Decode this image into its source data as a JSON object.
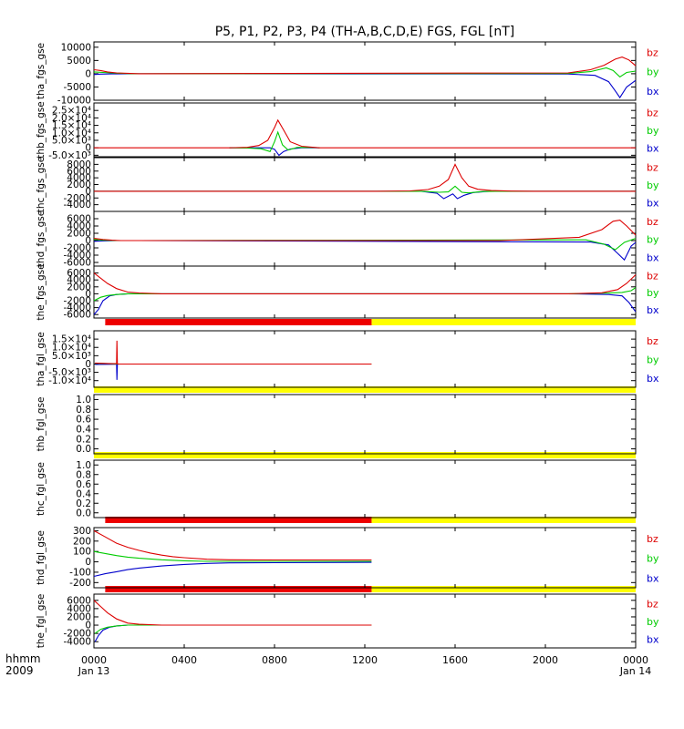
{
  "title": "P5, P1, P2, P3, P4 (TH-A,B,C,D,E) FGS, FGL [nT]",
  "footer": {
    "line1": "hhmm",
    "line2": "2009"
  },
  "colors": {
    "bz": "#dd0000",
    "by": "#00cc00",
    "bx": "#0000cc",
    "status_red": "#ee0000",
    "status_yellow": "#ffff00"
  },
  "time_axis": {
    "range_hours": [
      0,
      24
    ],
    "ticks": [
      {
        "t": 0,
        "label": "0000",
        "sub": "Jan 13"
      },
      {
        "t": 4,
        "label": "0400"
      },
      {
        "t": 8,
        "label": "0800"
      },
      {
        "t": 12,
        "label": "1200"
      },
      {
        "t": 16,
        "label": "1600"
      },
      {
        "t": 20,
        "label": "2000"
      },
      {
        "t": 24,
        "label": "0000",
        "sub": "Jan 14"
      }
    ]
  },
  "chart_data": [
    {
      "type": "line",
      "ylabel": "tha_fgs_gse",
      "ylim": [
        -10000,
        12000
      ],
      "yticks": [
        {
          "v": 10000,
          "label": "10000"
        },
        {
          "v": 5000,
          "label": "5000"
        },
        {
          "v": 0,
          "label": "0"
        },
        {
          "v": -5000,
          "label": "-5000"
        },
        {
          "v": -10000,
          "label": "-10000"
        }
      ],
      "series": [
        {
          "name": "bz",
          "x": [
            0,
            0.3,
            0.6,
            1.0,
            1.6,
            2.0,
            21.0,
            22.0,
            22.6,
            23.1,
            23.4,
            23.7,
            24.0
          ],
          "y": [
            1500,
            1200,
            700,
            300,
            100,
            0,
            300,
            1500,
            3200,
            5500,
            6300,
            5200,
            3000
          ]
        },
        {
          "name": "by",
          "x": [
            0,
            0.4,
            1.0,
            1.8,
            2.0,
            21.0,
            22.0,
            22.7,
            23.0,
            23.3,
            23.6,
            24.0
          ],
          "y": [
            700,
            500,
            200,
            0,
            0,
            100,
            800,
            2200,
            1200,
            -1200,
            500,
            1000
          ]
        },
        {
          "name": "bx",
          "x": [
            0,
            0.3,
            0.8,
            1.5,
            2.0,
            21.0,
            22.2,
            22.8,
            23.1,
            23.3,
            23.6,
            24.0
          ],
          "y": [
            -300,
            -150,
            -50,
            0,
            0,
            -100,
            -600,
            -3000,
            -6500,
            -9000,
            -5000,
            -2500
          ]
        }
      ]
    },
    {
      "type": "line",
      "ylabel": "thb_fgs_gse",
      "ylim": [
        -6000,
        30000
      ],
      "yticks": [
        {
          "v": 25000,
          "label": "2.5×10⁴"
        },
        {
          "v": 20000,
          "label": "2.0×10⁴"
        },
        {
          "v": 15000,
          "label": "1.5×10⁴"
        },
        {
          "v": 10000,
          "label": "1.0×10⁴"
        },
        {
          "v": 5000,
          "label": "5.0×10³"
        },
        {
          "v": 0,
          "label": "0"
        },
        {
          "v": -5000,
          "label": "-5.0×10³"
        }
      ],
      "series": [
        {
          "name": "bz",
          "x": [
            0,
            6.0,
            6.8,
            7.3,
            7.7,
            8.0,
            8.15,
            8.4,
            8.7,
            9.2,
            9.8,
            10.0,
            24
          ],
          "y": [
            0,
            0,
            300,
            1500,
            5000,
            13500,
            18500,
            12000,
            4000,
            1000,
            200,
            0,
            0
          ]
        },
        {
          "name": "by",
          "x": [
            6.0,
            6.8,
            7.4,
            7.8,
            8.0,
            8.15,
            8.35,
            8.6,
            9.0,
            9.6,
            10.0
          ],
          "y": [
            0,
            -200,
            -600,
            -2500,
            4000,
            10500,
            2000,
            -1500,
            200,
            300,
            0
          ]
        },
        {
          "name": "bx",
          "x": [
            6.0,
            7.2,
            7.8,
            8.0,
            8.2,
            8.4,
            8.7,
            9.2,
            10.0
          ],
          "y": [
            0,
            0,
            0,
            -1000,
            -5000,
            -2500,
            -800,
            0,
            0
          ]
        }
      ]
    },
    {
      "type": "line",
      "ylabel": "thc_fgs_gse",
      "ylim": [
        -6000,
        10000
      ],
      "yticks": [
        {
          "v": 8000,
          "label": "8000"
        },
        {
          "v": 6000,
          "label": "6000"
        },
        {
          "v": 4000,
          "label": "4000"
        },
        {
          "v": 2000,
          "label": "2000"
        },
        {
          "v": 0,
          "label": "0"
        },
        {
          "v": -2000,
          "label": "-2000"
        },
        {
          "v": -4000,
          "label": "-4000"
        }
      ],
      "series": [
        {
          "name": "bz",
          "x": [
            0,
            12.5,
            14.0,
            14.8,
            15.3,
            15.7,
            16.0,
            16.3,
            16.6,
            17.0,
            17.6,
            18.5,
            19.5,
            24
          ],
          "y": [
            0,
            0,
            100,
            500,
            1500,
            3500,
            8000,
            4000,
            1500,
            600,
            200,
            50,
            0,
            0
          ]
        },
        {
          "name": "by",
          "x": [
            0,
            14.5,
            15.3,
            15.7,
            16.0,
            16.3,
            16.6,
            17.2,
            17.8,
            24
          ],
          "y": [
            0,
            0,
            -300,
            -200,
            1500,
            -300,
            -500,
            -100,
            0,
            0
          ]
        },
        {
          "name": "bx",
          "x": [
            0,
            14.5,
            15.2,
            15.5,
            15.9,
            16.1,
            16.4,
            16.8,
            17.5,
            24
          ],
          "y": [
            0,
            0,
            -600,
            -2200,
            -800,
            -2200,
            -1200,
            -400,
            0,
            0
          ]
        }
      ]
    },
    {
      "type": "line",
      "ylabel": "thd_fgs_gse",
      "ylim": [
        -7000,
        8000
      ],
      "yticks": [
        {
          "v": 6000,
          "label": "6000"
        },
        {
          "v": 4000,
          "label": "4000"
        },
        {
          "v": 2000,
          "label": "2000"
        },
        {
          "v": 0,
          "label": "0"
        },
        {
          "v": -2000,
          "label": "-2000"
        },
        {
          "v": -4000,
          "label": "-4000"
        },
        {
          "v": -6000,
          "label": "-6000"
        }
      ],
      "series": [
        {
          "name": "bz",
          "x": [
            0,
            0.4,
            0.8,
            1.2,
            2.0,
            18.0,
            21.5,
            22.5,
            23.0,
            23.3,
            23.6,
            24.0
          ],
          "y": [
            600,
            300,
            100,
            0,
            0,
            0,
            900,
            3000,
            5300,
            5600,
            4000,
            1500
          ]
        },
        {
          "name": "by",
          "x": [
            0,
            0.4,
            1.0,
            2.0,
            21.8,
            22.6,
            23.1,
            23.5,
            24.0
          ],
          "y": [
            300,
            100,
            0,
            0,
            200,
            -1000,
            -2500,
            -500,
            600
          ]
        },
        {
          "name": "bx",
          "x": [
            0,
            0.3,
            1.0,
            2.0,
            22.0,
            22.8,
            23.2,
            23.5,
            23.8,
            24.0
          ],
          "y": [
            -200,
            -100,
            0,
            0,
            -400,
            -1200,
            -3500,
            -5300,
            -1500,
            -500
          ]
        }
      ]
    },
    {
      "type": "line",
      "ylabel": "the_fgs_gse",
      "ylim": [
        -7000,
        8000
      ],
      "yticks": [
        {
          "v": 6000,
          "label": "6000"
        },
        {
          "v": 4000,
          "label": "4000"
        },
        {
          "v": 2000,
          "label": "2000"
        },
        {
          "v": 0,
          "label": "0"
        },
        {
          "v": -2000,
          "label": "-2000"
        },
        {
          "v": -4000,
          "label": "-4000"
        },
        {
          "v": -6000,
          "label": "-6000"
        }
      ],
      "series": [
        {
          "name": "bz",
          "x": [
            0,
            0.3,
            0.6,
            1.0,
            1.5,
            2.0,
            3.0,
            21.0,
            22.5,
            23.2,
            23.6,
            24.0
          ],
          "y": [
            6000,
            4500,
            3000,
            1500,
            500,
            200,
            0,
            0,
            300,
            1200,
            3000,
            5500
          ]
        },
        {
          "name": "by",
          "x": [
            0,
            0.3,
            0.6,
            1.0,
            1.5,
            3.0,
            21.0,
            22.8,
            23.4,
            23.8,
            24.0
          ],
          "y": [
            -2000,
            -1000,
            -500,
            -200,
            0,
            0,
            0,
            200,
            400,
            900,
            1800
          ]
        },
        {
          "name": "bx",
          "x": [
            0,
            0.2,
            0.4,
            0.7,
            1.0,
            1.5,
            3.0,
            21.0,
            22.8,
            23.4,
            23.7,
            24.0
          ],
          "y": [
            -6000,
            -4500,
            -2000,
            -600,
            -200,
            0,
            0,
            0,
            -200,
            -600,
            -2500,
            -5200
          ]
        }
      ]
    },
    {
      "type": "line",
      "ylabel": "tha_fgl_gse",
      "ylim": [
        -14000,
        20000
      ],
      "yticks": [
        {
          "v": 15000,
          "label": "1.5×10⁴"
        },
        {
          "v": 10000,
          "label": "1.0×10⁴"
        },
        {
          "v": 5000,
          "label": "5.0×10³"
        },
        {
          "v": 0,
          "label": "0"
        },
        {
          "v": -5000,
          "label": "-5.0×10³"
        },
        {
          "v": -10000,
          "label": "-1.0×10⁴"
        }
      ],
      "series": [
        {
          "name": "bz",
          "x": [
            0.05,
            0.6,
            0.9,
            1.0,
            1.02,
            1.04,
            1.1,
            12.3
          ],
          "y": [
            600,
            300,
            200,
            200,
            14000,
            100,
            0,
            0
          ]
        },
        {
          "name": "by",
          "x": [
            0.05,
            0.5,
            0.95,
            1.0,
            12.3
          ],
          "y": [
            500,
            300,
            100,
            0,
            0
          ]
        },
        {
          "name": "bx",
          "x": [
            0.05,
            0.5,
            0.95,
            1.0,
            1.02,
            1.04,
            1.1
          ],
          "y": [
            -300,
            -200,
            -100,
            0,
            -9500,
            -100,
            0
          ]
        }
      ]
    },
    {
      "type": "line",
      "ylabel": "thb_fgl_gse",
      "ylim": [
        -0.1,
        1.1
      ],
      "yticks": [
        {
          "v": 1.0,
          "label": "1.0"
        },
        {
          "v": 0.8,
          "label": "0.8"
        },
        {
          "v": 0.6,
          "label": "0.6"
        },
        {
          "v": 0.4,
          "label": "0.4"
        },
        {
          "v": 0.2,
          "label": "0.2"
        },
        {
          "v": 0.0,
          "label": "0.0"
        }
      ],
      "series": []
    },
    {
      "type": "line",
      "ylabel": "thc_fgl_gse",
      "ylim": [
        -0.1,
        1.1
      ],
      "yticks": [
        {
          "v": 1.0,
          "label": "1.0"
        },
        {
          "v": 0.8,
          "label": "0.8"
        },
        {
          "v": 0.6,
          "label": "0.6"
        },
        {
          "v": 0.4,
          "label": "0.4"
        },
        {
          "v": 0.2,
          "label": "0.2"
        },
        {
          "v": 0.0,
          "label": "0.0"
        }
      ],
      "series": []
    },
    {
      "type": "line",
      "ylabel": "thd_fgl_gse",
      "ylim": [
        -250,
        330
      ],
      "yticks": [
        {
          "v": 300,
          "label": "300"
        },
        {
          "v": 200,
          "label": "200"
        },
        {
          "v": 100,
          "label": "100"
        },
        {
          "v": 0,
          "label": "0"
        },
        {
          "v": -100,
          "label": "-100"
        },
        {
          "v": -200,
          "label": "-200"
        }
      ],
      "series": [
        {
          "name": "bz",
          "x": [
            0,
            0.5,
            1.0,
            1.5,
            2.0,
            2.5,
            3.0,
            3.5,
            4.0,
            5.0,
            6.0,
            8.0,
            12.3
          ],
          "y": [
            300,
            240,
            180,
            140,
            110,
            85,
            65,
            50,
            40,
            25,
            20,
            18,
            18
          ]
        },
        {
          "name": "by",
          "x": [
            0,
            0.5,
            1.0,
            1.5,
            2.0,
            3.0,
            4.0,
            5.0,
            6.0,
            8.0,
            12.3
          ],
          "y": [
            100,
            80,
            60,
            45,
            35,
            20,
            10,
            5,
            5,
            5,
            5
          ]
        },
        {
          "name": "bx",
          "x": [
            0,
            0.5,
            1.0,
            1.5,
            2.0,
            3.0,
            4.0,
            5.0,
            6.0,
            8.0,
            12.3
          ],
          "y": [
            -140,
            -115,
            -95,
            -75,
            -60,
            -40,
            -25,
            -15,
            -10,
            -8,
            -5
          ]
        }
      ]
    },
    {
      "type": "line",
      "ylabel": "the_fgl_gse",
      "ylim": [
        -5500,
        7500
      ],
      "yticks": [
        {
          "v": 6000,
          "label": "6000"
        },
        {
          "v": 4000,
          "label": "4000"
        },
        {
          "v": 2000,
          "label": "2000"
        },
        {
          "v": 0,
          "label": "0"
        },
        {
          "v": -2000,
          "label": "-2000"
        },
        {
          "v": -4000,
          "label": "-4000"
        }
      ],
      "series": [
        {
          "name": "bz",
          "x": [
            0,
            0.3,
            0.6,
            1.0,
            1.5,
            2.0,
            3.0,
            12.3
          ],
          "y": [
            6000,
            4500,
            3000,
            1500,
            500,
            200,
            0,
            0
          ]
        },
        {
          "name": "by",
          "x": [
            0.05,
            0.3,
            0.6,
            1.0,
            1.5,
            3.0,
            12.3
          ],
          "y": [
            -2000,
            -1000,
            -500,
            -200,
            0,
            0,
            0
          ]
        },
        {
          "name": "bx",
          "x": [
            0.05,
            0.2,
            0.4,
            0.7,
            1.0,
            1.5,
            3.0,
            6.5
          ],
          "y": [
            -4000,
            -2500,
            -1200,
            -500,
            -200,
            0,
            0,
            0
          ]
        }
      ]
    }
  ],
  "status_bars": [
    {
      "red": [
        0.5,
        12.3
      ],
      "yellow": [
        12.3,
        24
      ]
    },
    {
      "red": null,
      "yellow": [
        0,
        24
      ]
    },
    {
      "red": null,
      "yellow": [
        0,
        24
      ]
    },
    {
      "red": [
        0.5,
        12.3
      ],
      "yellow": [
        12.3,
        24
      ]
    },
    {
      "red": [
        0.5,
        12.3
      ],
      "yellow": [
        12.3,
        24
      ]
    }
  ]
}
